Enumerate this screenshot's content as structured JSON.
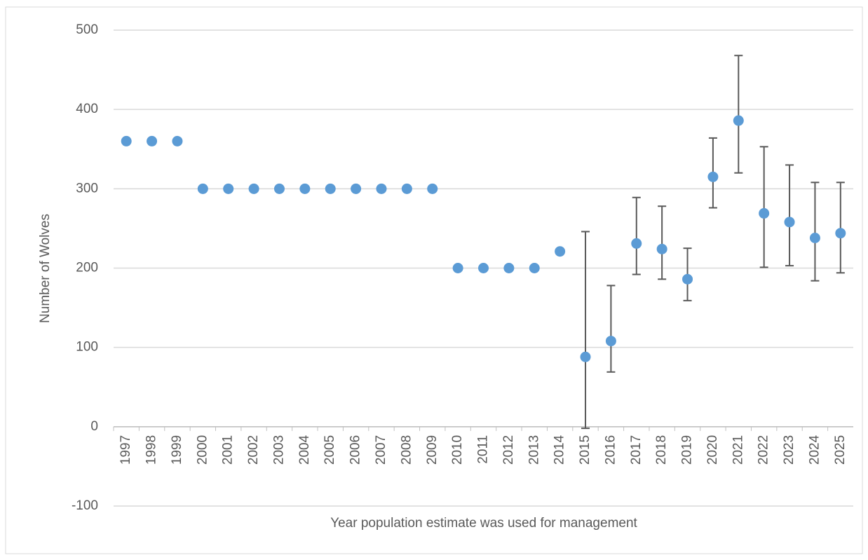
{
  "chart_data": {
    "type": "scatter",
    "x_label": "Year population estimate was used for management",
    "y_label": "Number of Wolves",
    "categories": [
      "1997",
      "1998",
      "1999",
      "2000",
      "2001",
      "2002",
      "2003",
      "2004",
      "2005",
      "2006",
      "2007",
      "2008",
      "2009",
      "2010",
      "2011",
      "2012",
      "2013",
      "2014",
      "2015",
      "2016",
      "2017",
      "2018",
      "2019",
      "2020",
      "2021",
      "2022",
      "2023",
      "2024",
      "2025"
    ],
    "series": [
      {
        "color": "#5b9bd5",
        "error_color": "#595959",
        "values": [
          360,
          360,
          360,
          300,
          300,
          300,
          300,
          300,
          300,
          300,
          300,
          300,
          300,
          200,
          200,
          200,
          200,
          221,
          88,
          108,
          231,
          224,
          186,
          315,
          386,
          269,
          258,
          238,
          244
        ],
        "lower": [
          null,
          null,
          null,
          null,
          null,
          null,
          null,
          null,
          null,
          null,
          null,
          null,
          null,
          null,
          null,
          null,
          null,
          null,
          -2,
          69,
          192,
          186,
          159,
          276,
          320,
          201,
          203,
          184,
          194
        ],
        "upper": [
          null,
          null,
          null,
          null,
          null,
          null,
          null,
          null,
          null,
          null,
          null,
          null,
          null,
          null,
          null,
          null,
          null,
          null,
          246,
          178,
          289,
          278,
          225,
          364,
          468,
          353,
          330,
          308,
          308
        ]
      }
    ],
    "ylim": [
      -100,
      500
    ],
    "yticks": [
      -100,
      0,
      100,
      200,
      300,
      400,
      500
    ],
    "grid": true
  }
}
